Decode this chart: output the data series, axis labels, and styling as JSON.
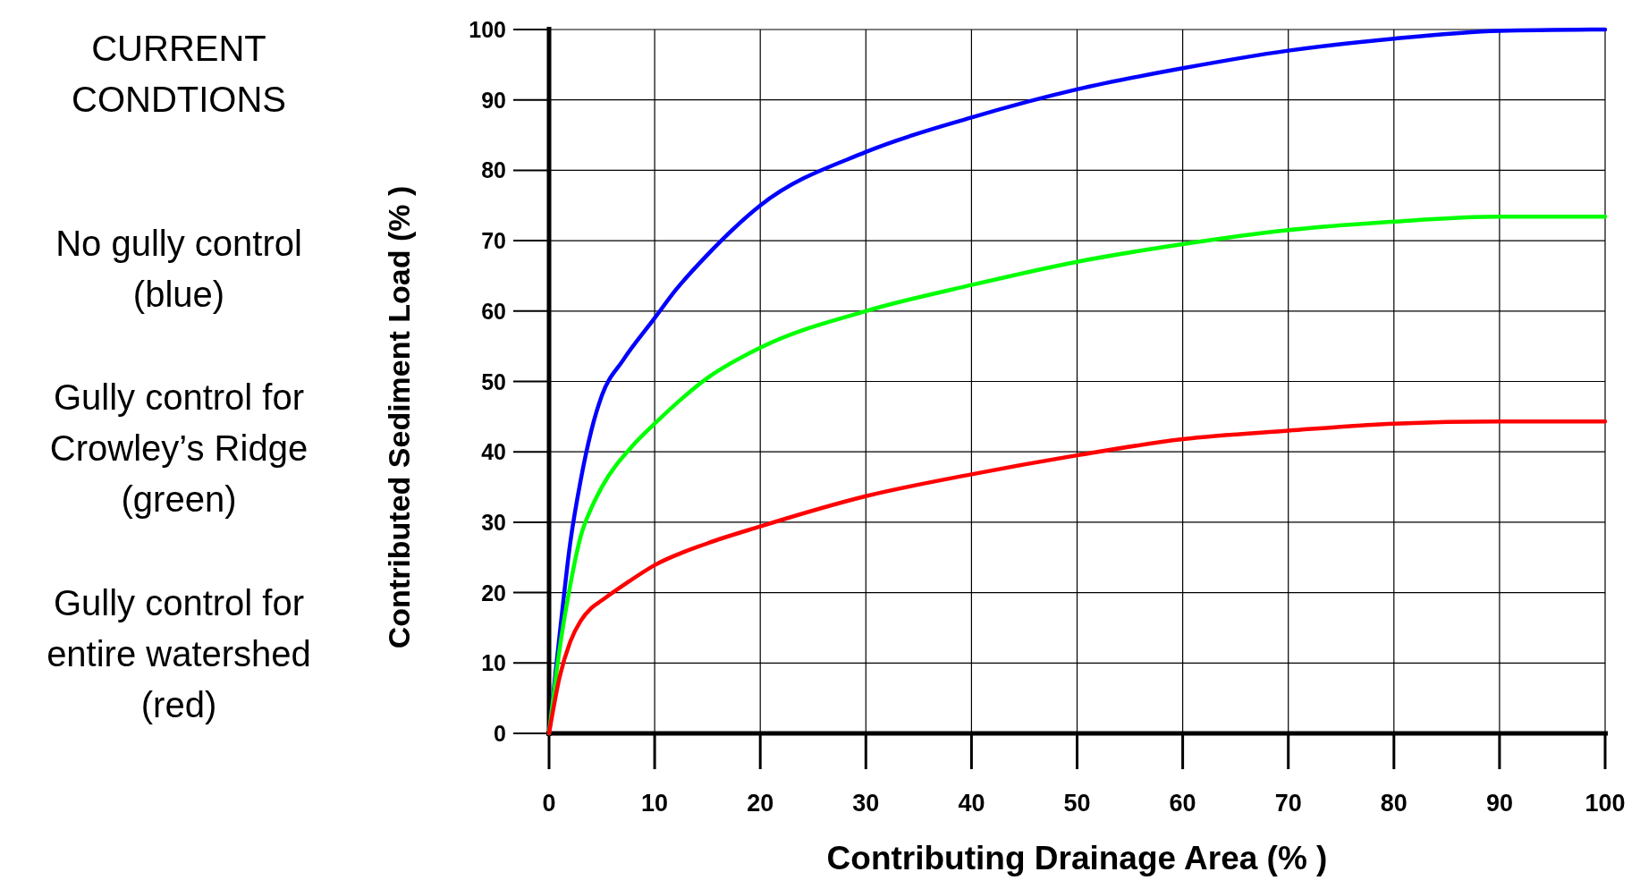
{
  "chart_data": {
    "type": "line",
    "title": "CURRENT\nCONDTIONS",
    "xlabel": "Contributing Drainage Area (% )",
    "ylabel": "Contributed Sediment Load (% )",
    "annotations": [
      "No gully control\n(blue)",
      "Gully control for\nCrowley’s Ridge\n(green)",
      "Gully control for\nentire watershed\n(red)"
    ],
    "xlim": [
      0,
      100
    ],
    "ylim": [
      0,
      100
    ],
    "xticks": [
      0,
      10,
      20,
      30,
      40,
      50,
      60,
      70,
      80,
      90,
      100
    ],
    "yticks": [
      0,
      10,
      20,
      30,
      40,
      50,
      60,
      70,
      80,
      90,
      100
    ],
    "grid": true,
    "marker": "none",
    "line_style": "solid",
    "series": [
      {
        "color": "#0000ff",
        "x": [
          0,
          1,
          2,
          3,
          4,
          5,
          7,
          10,
          12,
          15,
          20,
          30,
          40,
          50,
          60,
          70,
          80,
          90,
          100
        ],
        "values": [
          0,
          14,
          27,
          36,
          43,
          48,
          53,
          59,
          63,
          68,
          75,
          82.6,
          87.5,
          91.5,
          94.5,
          97,
          98.7,
          99.8,
          100
        ]
      },
      {
        "color": "#00ff00",
        "x": [
          0,
          1,
          2,
          3,
          4,
          5,
          8,
          10,
          15,
          20,
          30,
          40,
          50,
          60,
          70,
          80,
          90,
          100
        ],
        "values": [
          0,
          12,
          21,
          28,
          32,
          35,
          41,
          44,
          50.5,
          54.8,
          60,
          63.7,
          67,
          69.5,
          71.5,
          72.7,
          73.4,
          73.4
        ]
      },
      {
        "color": "#ff0000",
        "x": [
          0,
          1,
          2,
          3,
          4,
          5,
          7,
          10,
          15,
          20,
          30,
          40,
          50,
          60,
          70,
          80,
          90,
          100
        ],
        "values": [
          0,
          8,
          13,
          16,
          17.8,
          18.9,
          21,
          23.9,
          27,
          29.4,
          33.7,
          36.8,
          39.5,
          41.8,
          43,
          44,
          44.3,
          44.3
        ]
      }
    ]
  }
}
